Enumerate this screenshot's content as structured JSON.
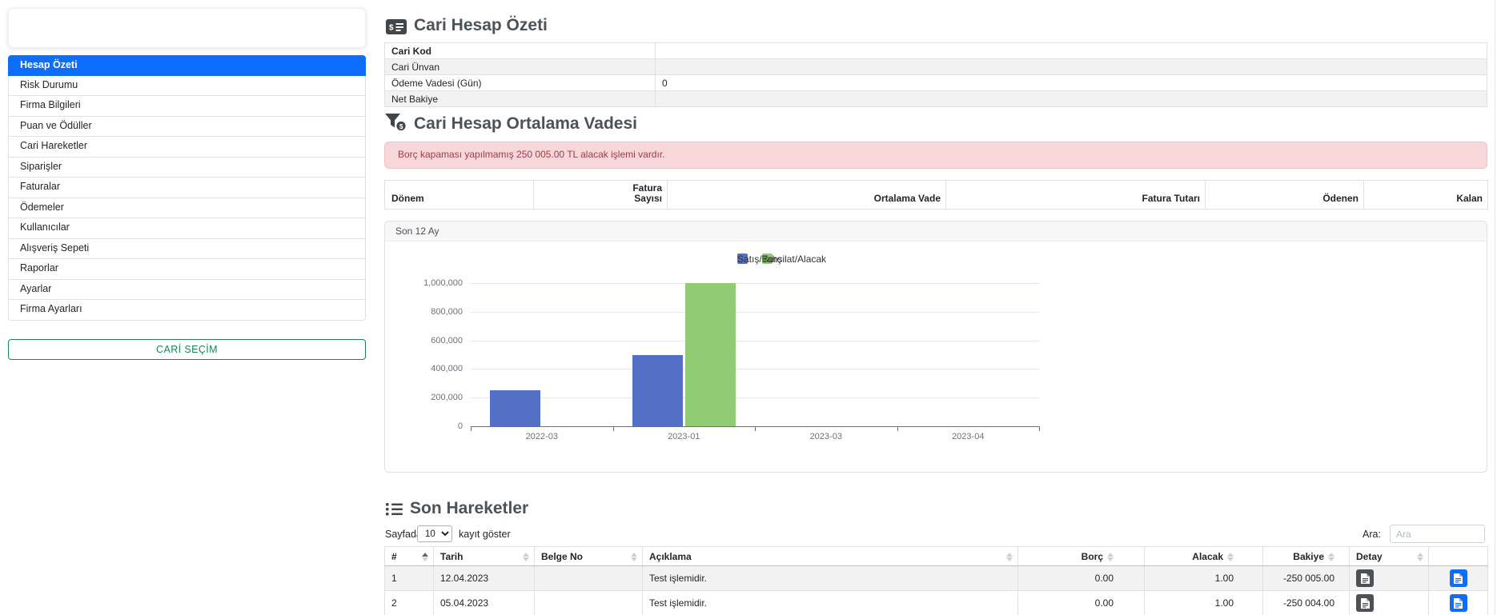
{
  "sidebar": {
    "menu_items": [
      {
        "label": "Hesap Özeti",
        "active": true
      },
      {
        "label": "Risk Durumu",
        "active": false
      },
      {
        "label": "Firma Bilgileri",
        "active": false
      },
      {
        "label": "Puan ve Ödüller",
        "active": false
      },
      {
        "label": "Cari Hareketler",
        "active": false
      },
      {
        "label": "Siparişler",
        "active": false
      },
      {
        "label": "Faturalar",
        "active": false
      },
      {
        "label": "Ödemeler",
        "active": false
      },
      {
        "label": "Kullanıcılar",
        "active": false
      },
      {
        "label": "Alışveriş Sepeti",
        "active": false
      },
      {
        "label": "Raporlar",
        "active": false
      },
      {
        "label": "Ayarlar",
        "active": false
      },
      {
        "label": "Firma Ayarları",
        "active": false
      }
    ],
    "select_button_label": "CARİ SEÇİM"
  },
  "account_summary": {
    "title": "Cari Hesap Özeti",
    "icon": "money-check-icon",
    "rows": [
      {
        "label": "Cari Kod",
        "value": ""
      },
      {
        "label": "Cari Ünvan",
        "value": ""
      },
      {
        "label": "Ödeme Vadesi (Gün)",
        "value": "0"
      },
      {
        "label": "Net Bakiye",
        "value": ""
      }
    ]
  },
  "average_maturity": {
    "title": "Cari Hesap Ortalama Vadesi",
    "icon": "filter-dollar-icon",
    "alert_text": "Borç kapaması yapılmamış 250 005.00 TL alacak işlemi vardır.",
    "columns": [
      "Dönem",
      "Fatura Sayısı",
      "Ortalama Vade",
      "Fatura Tutarı",
      "Ödenen",
      "Kalan"
    ]
  },
  "chart_panel": {
    "header": "Son 12 Ay"
  },
  "chart_data": {
    "type": "bar",
    "categories": [
      "2022-03",
      "2023-01",
      "2023-03",
      "2023-04"
    ],
    "series": [
      {
        "name": "Satış/Borç",
        "color": "#5470c6",
        "values": [
          250000,
          500000,
          0,
          0
        ]
      },
      {
        "name": "Tahsilat/Alacak",
        "color": "#91cc75",
        "values": [
          0,
          1000000,
          0,
          0
        ]
      }
    ],
    "ylim": [
      0,
      1000000
    ],
    "ytick_step": 200000,
    "ytick_labels": [
      "0",
      "200,000",
      "400,000",
      "600,000",
      "800,000",
      "1,000,000"
    ],
    "legend_position": "top-center",
    "grid": true
  },
  "transactions": {
    "title": "Son Hareketler",
    "icon": "list-icon",
    "page_size": {
      "prefix": "Sayfada",
      "value": "10",
      "suffix": "kayıt göster"
    },
    "search": {
      "label": "Ara:",
      "placeholder": "Ara"
    },
    "columns": [
      "#",
      "Tarih",
      "Belge No",
      "Açıklama",
      "Borç",
      "Alacak",
      "Bakiye",
      "Detay",
      ""
    ],
    "rows": [
      {
        "num": "1",
        "tarih": "12.04.2023",
        "belge_no": "",
        "aciklama": "Test işlemidir.",
        "borc": "0.00",
        "alacak": "1.00",
        "bakiye": "-250 005.00"
      },
      {
        "num": "2",
        "tarih": "05.04.2023",
        "belge_no": "",
        "aciklama": "Test işlemidir.",
        "borc": "0.00",
        "alacak": "1.00",
        "bakiye": "-250 004.00"
      }
    ]
  },
  "colors": {
    "active_menu": "#0d6efd",
    "select_button": "#198754",
    "alert_bg": "#f8d7da",
    "alert_text": "#a13b4b",
    "bar_blue": "#5470c6",
    "bar_green": "#91cc75",
    "detail_button_dark": "#4b5156",
    "detail_button_blue": "#0d6efd"
  }
}
